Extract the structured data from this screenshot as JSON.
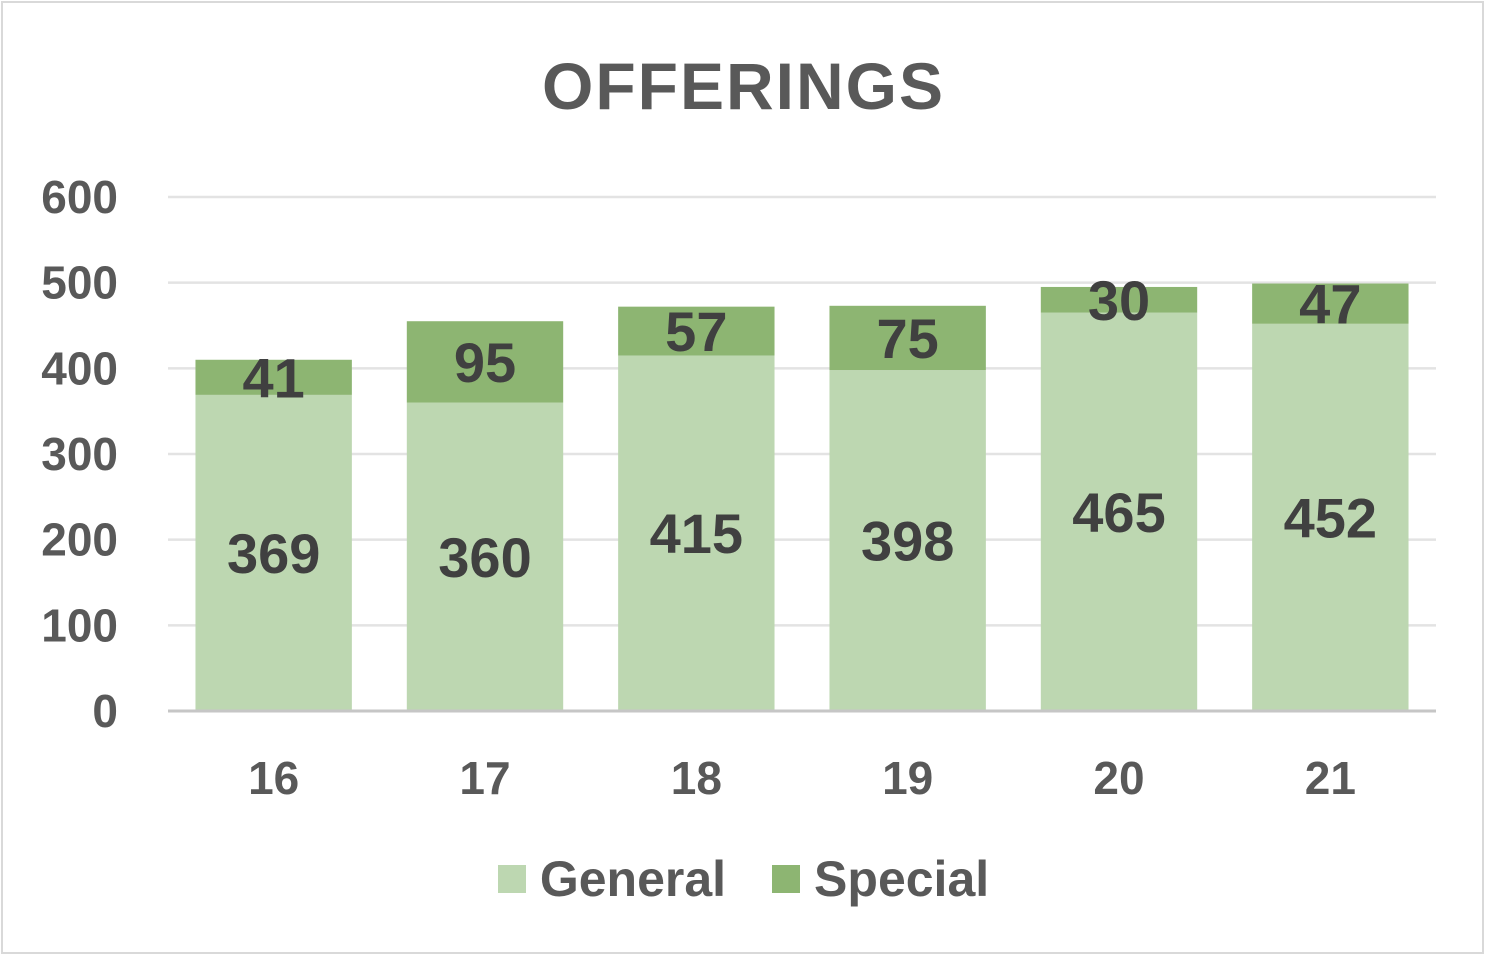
{
  "chart_data": {
    "type": "bar",
    "stacked": true,
    "title": "OFFERINGS",
    "categories": [
      "16",
      "17",
      "18",
      "19",
      "20",
      "21"
    ],
    "series": [
      {
        "name": "General",
        "values": [
          369,
          360,
          415,
          398,
          465,
          452
        ],
        "color": "#bdd7b1"
      },
      {
        "name": "Special",
        "values": [
          41,
          95,
          57,
          75,
          30,
          47
        ],
        "color": "#8db572"
      }
    ],
    "ylim": [
      0,
      600
    ],
    "yticks": [
      0,
      100,
      200,
      300,
      400,
      500,
      600
    ],
    "grid": true,
    "legend_position": "bottom",
    "data_labels": true
  }
}
